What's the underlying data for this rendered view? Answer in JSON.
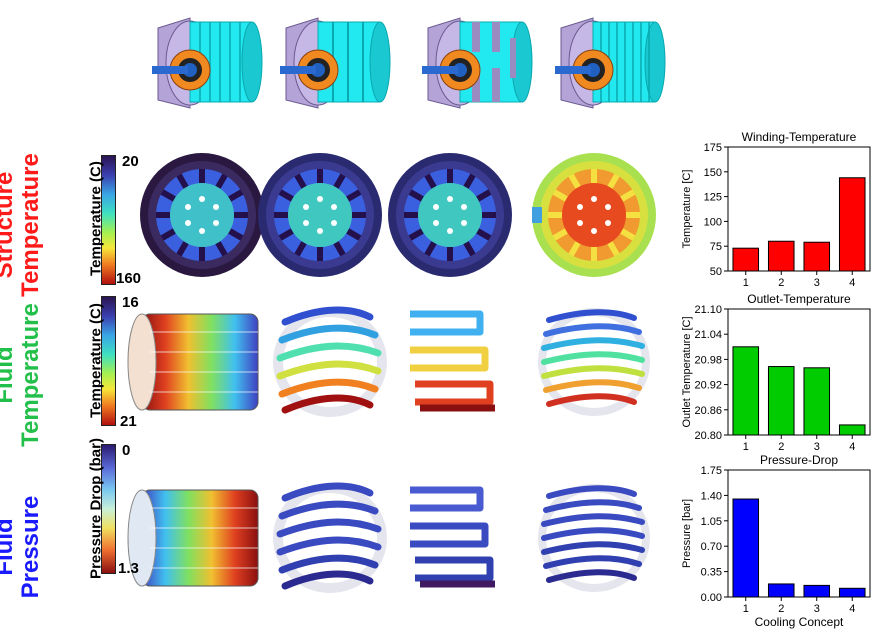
{
  "row_labels": [
    {
      "line1": "Structure",
      "line2": "Temperature",
      "color": "#ff1a1a"
    },
    {
      "line1": "Fluid",
      "line2": "Temperature",
      "color": "#22c04a"
    },
    {
      "line1": "Fluid",
      "line2": "Pressure",
      "color": "#1a1aff"
    }
  ],
  "colorbars": [
    {
      "title": "Temperature (C)",
      "top_value": "20",
      "bottom_value": "160"
    },
    {
      "title": "Temperature (C)",
      "top_value": "16",
      "bottom_value": "21"
    },
    {
      "title": "Pressure Drop (bar)",
      "top_value": "0",
      "bottom_value": "1.3"
    }
  ],
  "colors": {
    "motor_housing": "#b3a3d6",
    "coolant_cyan": "#22e8f0",
    "stator_orange": "#f08a20",
    "bar_red": "#ff0000",
    "bar_green": "#00cc00",
    "bar_blue": "#0000ff"
  },
  "chart_data": [
    {
      "type": "bar",
      "title": "Winding-Temperature",
      "xlabel": "",
      "ylabel": "Temperature [C]",
      "categories": [
        "1",
        "2",
        "3",
        "4"
      ],
      "values": [
        73,
        80,
        79,
        144
      ],
      "ylim": [
        50,
        175
      ],
      "yticks": [
        "50",
        "75",
        "100",
        "125",
        "150",
        "175"
      ],
      "color": "#ff0000",
      "grid": false
    },
    {
      "type": "bar",
      "title": "Outlet-Temperature",
      "xlabel": "",
      "ylabel": "Outlet Temperature [C]",
      "categories": [
        "1",
        "2",
        "3",
        "4"
      ],
      "values": [
        21.01,
        20.963,
        20.96,
        20.824
      ],
      "ylim": [
        20.8,
        21.1
      ],
      "yticks": [
        "20.80",
        "20.86",
        "20.92",
        "20.98",
        "21.04",
        "21.10"
      ],
      "color": "#00cc00",
      "grid": false
    },
    {
      "type": "bar",
      "title": "Pressure-Drop",
      "xlabel": "Cooling Concept",
      "ylabel": "Pressure [bar]",
      "categories": [
        "1",
        "2",
        "3",
        "4"
      ],
      "values": [
        1.35,
        0.18,
        0.16,
        0.12
      ],
      "ylim": [
        0,
        1.75
      ],
      "yticks": [
        "0.00",
        "0.35",
        "0.70",
        "1.05",
        "1.40",
        "1.75"
      ],
      "color": "#0000ff",
      "grid": false
    }
  ]
}
